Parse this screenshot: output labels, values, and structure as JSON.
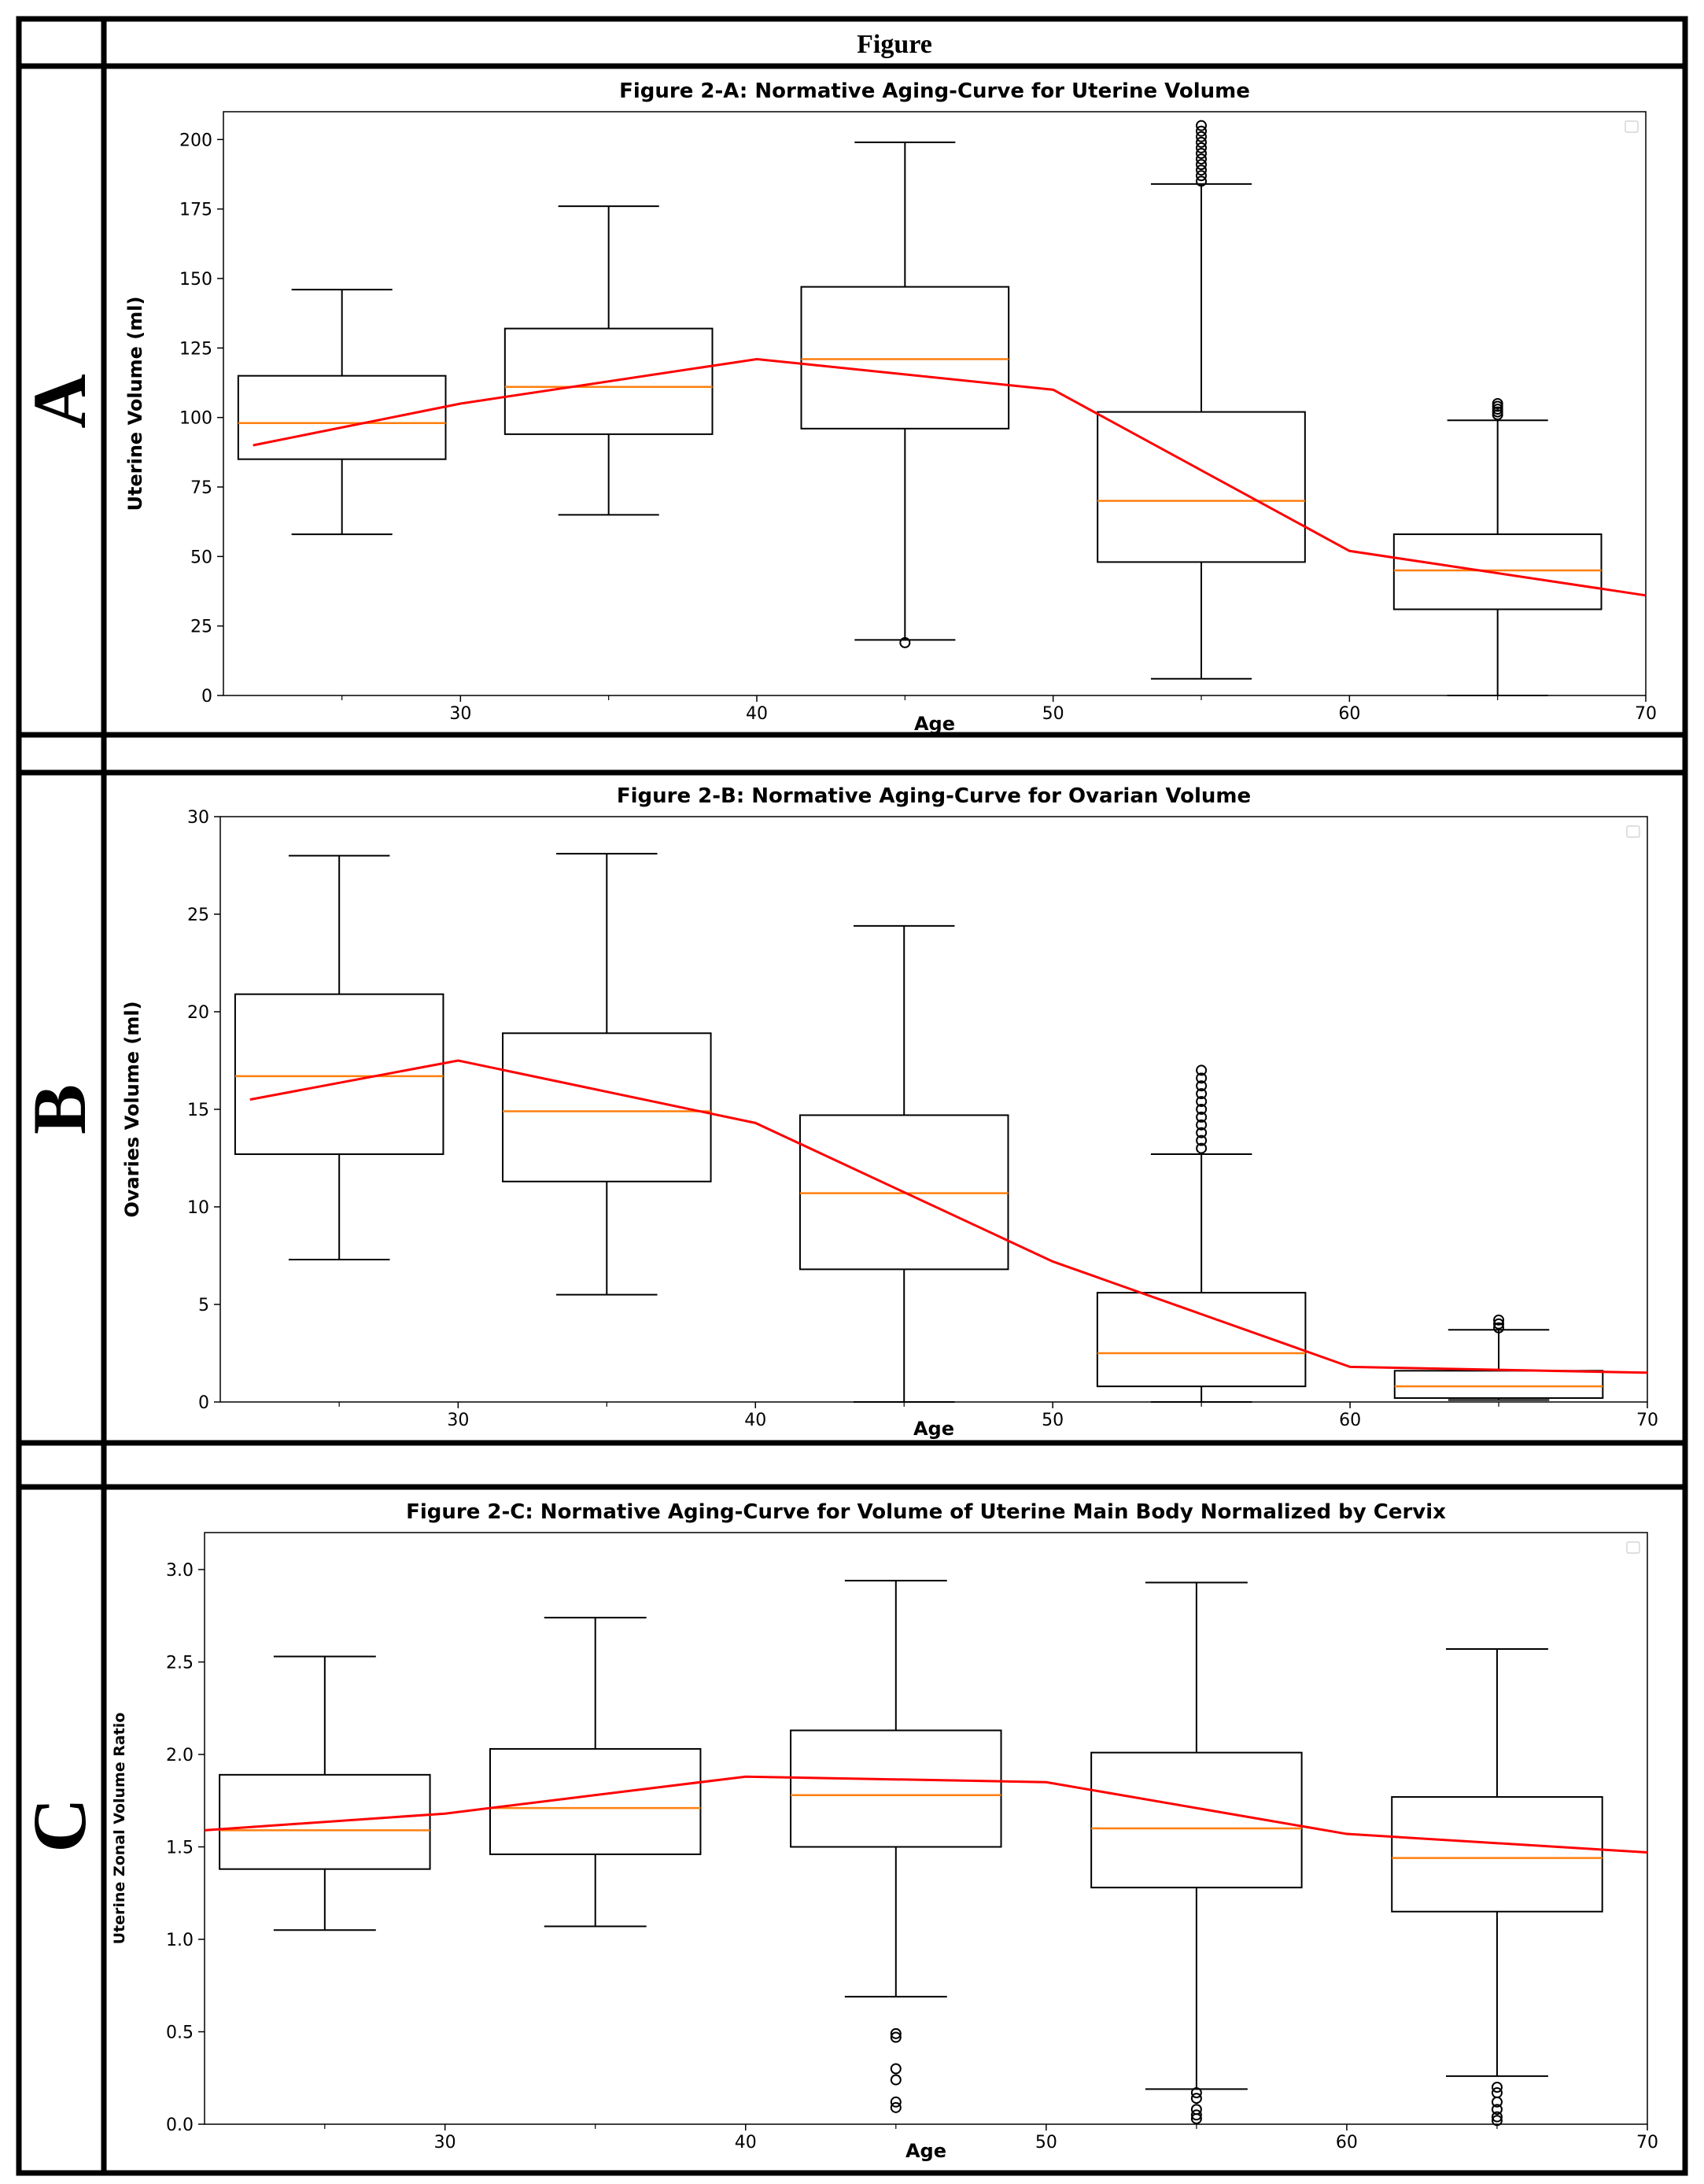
{
  "header": {
    "title": "Figure"
  },
  "panels": [
    {
      "letter": "A"
    },
    {
      "letter": "B"
    },
    {
      "letter": "C"
    }
  ],
  "colors": {
    "box": "#000000",
    "median": "#ff7f0e",
    "trend": "#ff0000",
    "outlier": "#000000"
  },
  "chart_data": [
    {
      "type": "box",
      "title": "Figure 2-A: Normative Aging-Curve for Uterine Volume",
      "xlabel": "Age",
      "ylabel": "Uterine Volume (ml)",
      "xlim": [
        22,
        70
      ],
      "ylim": [
        0,
        210
      ],
      "xticks": [
        30,
        40,
        50,
        60,
        70
      ],
      "yticks": [
        0,
        25,
        50,
        75,
        100,
        125,
        150,
        175,
        200
      ],
      "legend": "top-right (empty)",
      "boxes": [
        {
          "center": 26,
          "whislo": 58,
          "q1": 85,
          "med": 98,
          "q3": 115,
          "whishi": 146,
          "fliers": []
        },
        {
          "center": 35,
          "whislo": 65,
          "q1": 94,
          "med": 111,
          "q3": 132,
          "whishi": 176,
          "fliers": []
        },
        {
          "center": 45,
          "whislo": 20,
          "q1": 96,
          "med": 121,
          "q3": 147,
          "whishi": 199,
          "fliers": [
            19
          ]
        },
        {
          "center": 55,
          "whislo": 6,
          "q1": 48,
          "med": 70,
          "q3": 102,
          "whishi": 184,
          "fliers": [
            185,
            187,
            189,
            191,
            193,
            195,
            197,
            199,
            201,
            203,
            205
          ]
        },
        {
          "center": 65,
          "whislo": 0,
          "q1": 31,
          "med": 45,
          "q3": 58,
          "whishi": 99,
          "fliers": [
            101,
            102,
            103,
            104,
            105
          ]
        }
      ],
      "trend": {
        "x": [
          23,
          30,
          40,
          50,
          60,
          70
        ],
        "y": [
          90,
          105,
          121,
          110,
          52,
          36
        ]
      }
    },
    {
      "type": "box",
      "title": "Figure 2-B: Normative Aging-Curve for Ovarian Volume",
      "xlabel": "Age",
      "ylabel": "Ovaries Volume (ml)",
      "xlim": [
        22,
        70
      ],
      "ylim": [
        0,
        30
      ],
      "xticks": [
        30,
        40,
        50,
        60,
        70
      ],
      "yticks": [
        0,
        5,
        10,
        15,
        20,
        25,
        30
      ],
      "legend": "top-right (empty)",
      "boxes": [
        {
          "center": 26,
          "whislo": 7.3,
          "q1": 12.7,
          "med": 16.7,
          "q3": 20.9,
          "whishi": 28.0,
          "fliers": []
        },
        {
          "center": 35,
          "whislo": 5.5,
          "q1": 11.3,
          "med": 14.9,
          "q3": 18.9,
          "whishi": 28.1,
          "fliers": []
        },
        {
          "center": 45,
          "whislo": 0.0,
          "q1": 6.8,
          "med": 10.7,
          "q3": 14.7,
          "whishi": 24.4,
          "fliers": []
        },
        {
          "center": 55,
          "whislo": 0.0,
          "q1": 0.8,
          "med": 2.5,
          "q3": 5.6,
          "whishi": 12.7,
          "fliers": [
            13.0,
            13.4,
            13.8,
            14.2,
            14.6,
            15.0,
            15.4,
            15.8,
            16.2,
            16.6,
            17.0
          ]
        },
        {
          "center": 65,
          "whislo": 0.1,
          "q1": 0.2,
          "med": 0.8,
          "q3": 1.6,
          "whishi": 3.7,
          "fliers": [
            3.8,
            4.0,
            4.2
          ]
        }
      ],
      "trend": {
        "x": [
          23,
          30,
          40,
          50,
          60,
          70
        ],
        "y": [
          15.5,
          17.5,
          14.3,
          7.2,
          1.8,
          1.5
        ]
      }
    },
    {
      "type": "box",
      "title": "Figure 2-C: Normative Aging-Curve for Volume of Uterine Main Body Normalized by Cervix",
      "xlabel": "Age",
      "ylabel": "Uterine Zonal Volume Ratio",
      "xlim": [
        22,
        70
      ],
      "ylim": [
        0,
        3.2
      ],
      "xticks": [
        30,
        40,
        50,
        60,
        70
      ],
      "yticks": [
        0.0,
        0.5,
        1.0,
        1.5,
        2.0,
        2.5,
        3.0
      ],
      "ytick_labels": [
        "0.0",
        "0.5",
        "1.0",
        "1.5",
        "2.0",
        "2.5",
        "3.0"
      ],
      "legend": "top-right (empty)",
      "boxes": [
        {
          "center": 26,
          "whislo": 1.05,
          "q1": 1.38,
          "med": 1.59,
          "q3": 1.89,
          "whishi": 2.53,
          "fliers": []
        },
        {
          "center": 35,
          "whislo": 1.07,
          "q1": 1.46,
          "med": 1.71,
          "q3": 2.03,
          "whishi": 2.74,
          "fliers": []
        },
        {
          "center": 45,
          "whislo": 0.69,
          "q1": 1.5,
          "med": 1.78,
          "q3": 2.13,
          "whishi": 2.94,
          "fliers": [
            0.49,
            0.47,
            0.3,
            0.24,
            0.12,
            0.09
          ]
        },
        {
          "center": 55,
          "whislo": 0.19,
          "q1": 1.28,
          "med": 1.6,
          "q3": 2.01,
          "whishi": 2.93,
          "fliers": [
            0.17,
            0.14,
            0.08,
            0.05,
            0.03
          ]
        },
        {
          "center": 65,
          "whislo": 0.26,
          "q1": 1.15,
          "med": 1.44,
          "q3": 1.77,
          "whishi": 2.57,
          "fliers": [
            0.2,
            0.17,
            0.12,
            0.08,
            0.04,
            0.02
          ]
        }
      ],
      "trend": {
        "x": [
          22,
          30,
          40,
          50,
          60,
          70
        ],
        "y": [
          1.59,
          1.68,
          1.88,
          1.85,
          1.57,
          1.47
        ]
      }
    }
  ]
}
